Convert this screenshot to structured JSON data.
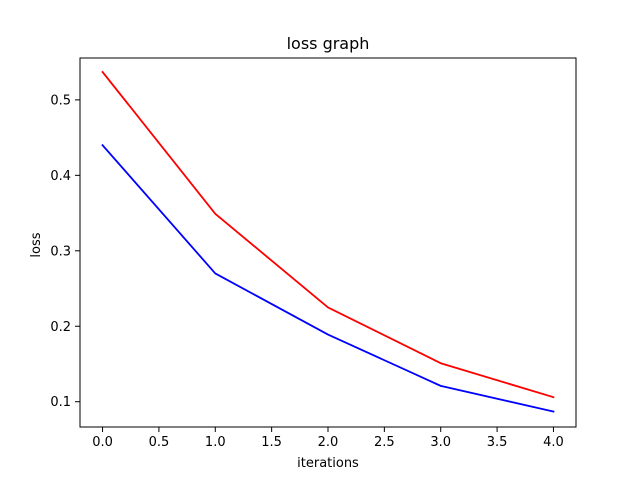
{
  "chart_data": {
    "type": "line",
    "title": "loss graph",
    "xlabel": "iterations",
    "ylabel": "loss",
    "xlim": [
      -0.2,
      4.2
    ],
    "ylim": [
      0.0665,
      0.5555
    ],
    "xticks": [
      0.0,
      0.5,
      1.0,
      1.5,
      2.0,
      2.5,
      3.0,
      3.5,
      4.0
    ],
    "xtick_labels": [
      "0.0",
      "0.5",
      "1.0",
      "1.5",
      "2.0",
      "2.5",
      "3.0",
      "3.5",
      "4.0"
    ],
    "yticks": [
      0.1,
      0.2,
      0.3,
      0.4,
      0.5
    ],
    "ytick_labels": [
      "0.1",
      "0.2",
      "0.3",
      "0.4",
      "0.5"
    ],
    "grid": false,
    "legend": "none",
    "x": [
      0,
      1,
      2,
      3,
      4
    ],
    "series": [
      {
        "color": "#ff0000",
        "values": [
          0.537,
          0.349,
          0.225,
          0.151,
          0.106
        ]
      },
      {
        "color": "#0000ff",
        "values": [
          0.44,
          0.27,
          0.189,
          0.121,
          0.087
        ]
      }
    ]
  }
}
